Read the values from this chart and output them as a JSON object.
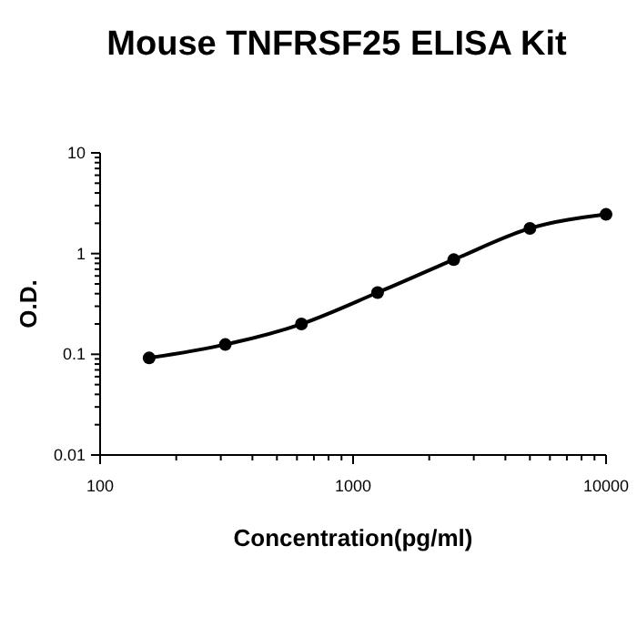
{
  "chart_data": {
    "type": "line",
    "title": "Mouse TNFRSF25 ELISA Kit",
    "xlabel": "Concentration(pg/ml)",
    "ylabel": "O.D.",
    "x": [
      156.25,
      312.5,
      625,
      1250,
      2500,
      5000,
      10000
    ],
    "series": [
      {
        "color": "#000000",
        "values": [
          0.092,
          0.125,
          0.2,
          0.41,
          0.87,
          1.78,
          2.45
        ]
      }
    ],
    "log": "xy",
    "marker": "circle",
    "line_style": "solid",
    "grid": false,
    "xlim": [
      100,
      10000
    ],
    "xticks": [
      100,
      {
        "value": 200,
        "label": null
      },
      {
        "value": 300,
        "label": null
      },
      {
        "value": 400,
        "label": null
      },
      {
        "value": 500,
        "label": null
      },
      {
        "value": 600,
        "label": null
      },
      {
        "value": 700,
        "label": null
      },
      {
        "value": 800,
        "label": null
      },
      {
        "value": 900,
        "label": null
      },
      1000,
      {
        "value": 2000,
        "label": null
      },
      {
        "value": 3000,
        "label": null
      },
      {
        "value": 4000,
        "label": null
      },
      {
        "value": 5000,
        "label": null
      },
      {
        "value": 6000,
        "label": null
      },
      {
        "value": 7000,
        "label": null
      },
      {
        "value": 8000,
        "label": null
      },
      {
        "value": 9000,
        "label": null
      },
      10000
    ],
    "ylim": [
      0.01,
      10
    ],
    "yticks": [
      0.01,
      {
        "value": 0.02,
        "label": null
      },
      {
        "value": 0.03,
        "label": null
      },
      {
        "value": 0.04,
        "label": null
      },
      {
        "value": 0.05,
        "label": null
      },
      {
        "value": 0.06,
        "label": null
      },
      {
        "value": 0.07,
        "label": null
      },
      {
        "value": 0.08,
        "label": null
      },
      {
        "value": 0.09,
        "label": null
      },
      0.1,
      {
        "value": 0.2,
        "label": null
      },
      {
        "value": 0.3,
        "label": null
      },
      {
        "value": 0.4,
        "label": null
      },
      {
        "value": 0.5,
        "label": null
      },
      {
        "value": 0.6,
        "label": null
      },
      {
        "value": 0.7,
        "label": null
      },
      {
        "value": 0.8,
        "label": null
      },
      {
        "value": 0.9,
        "label": null
      },
      1,
      {
        "value": 2,
        "label": null
      },
      {
        "value": 3,
        "label": null
      },
      {
        "value": 4,
        "label": null
      },
      {
        "value": 5,
        "label": null
      },
      {
        "value": 6,
        "label": null
      },
      {
        "value": 7,
        "label": null
      },
      {
        "value": 8,
        "label": null
      },
      {
        "value": 9,
        "label": null
      },
      10
    ]
  }
}
